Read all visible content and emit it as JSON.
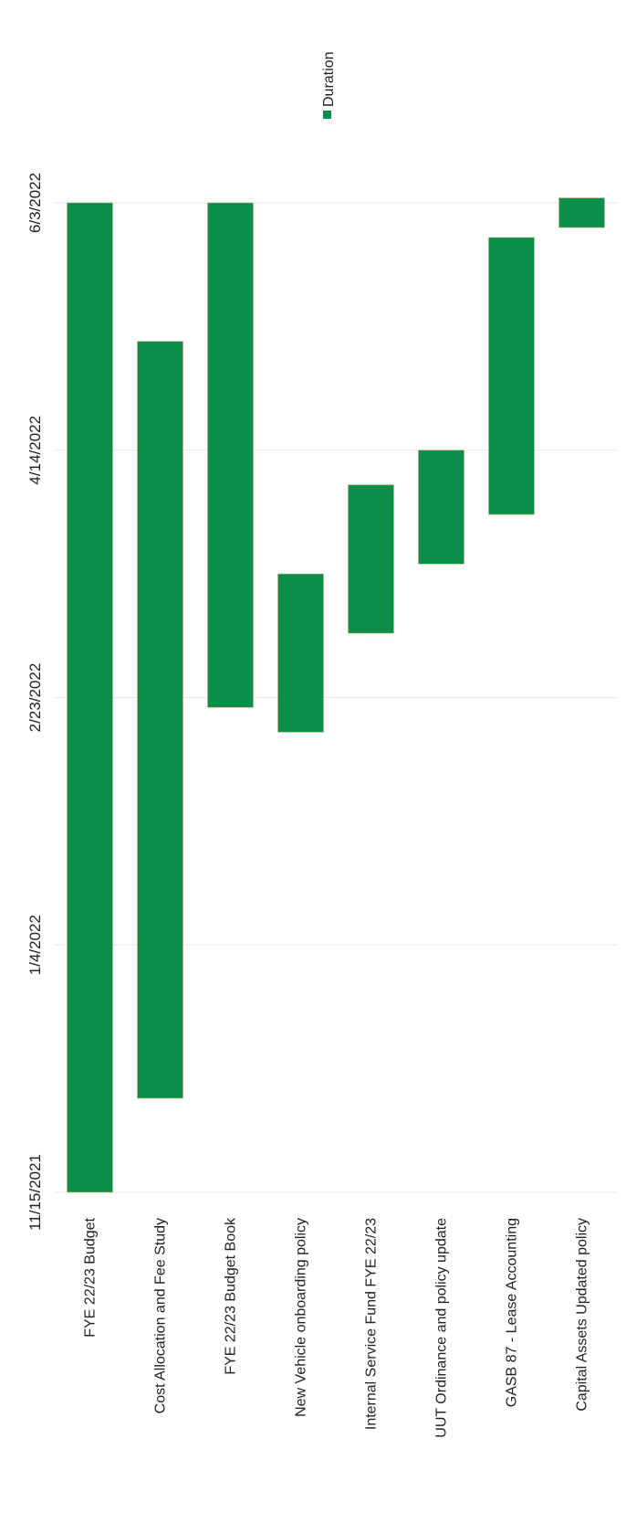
{
  "chart_data": {
    "type": "bar",
    "orientation": "vertical-gantt",
    "title": "",
    "xlabel": "",
    "ylabel": "",
    "axis_ticks": [
      "11/15/2021",
      "1/4/2022",
      "2/23/2022",
      "4/14/2022",
      "6/3/2022"
    ],
    "axis_range": [
      "11/15/2021",
      "6/3/2022"
    ],
    "grid": true,
    "legend": {
      "position": "top-right",
      "entries": [
        "Duration"
      ]
    },
    "categories": [
      "FYE 22/23 Budget",
      "Cost Allocation and Fee Study",
      "FYE 22/23 Budget Book",
      "New Vehicle onboarding policy",
      "Internal Service Fund FYE 22/23",
      "UUT Ordinance and policy update",
      "GASB 87 - Lease Accounting",
      "Capital Assets Updated policy"
    ],
    "series": [
      {
        "name": "Duration",
        "color": "#0a8f4a",
        "ranges": [
          {
            "start": "11/15/2021",
            "end": "6/3/2022"
          },
          {
            "start": "12/4/2021",
            "end": "5/6/2022"
          },
          {
            "start": "2/21/2022",
            "end": "6/3/2022"
          },
          {
            "start": "2/16/2022",
            "end": "3/20/2022"
          },
          {
            "start": "3/8/2022",
            "end": "4/7/2022"
          },
          {
            "start": "3/22/2022",
            "end": "4/14/2022"
          },
          {
            "start": "4/1/2022",
            "end": "5/27/2022"
          },
          {
            "start": "5/29/2022",
            "end": "6/4/2022"
          }
        ]
      }
    ]
  }
}
